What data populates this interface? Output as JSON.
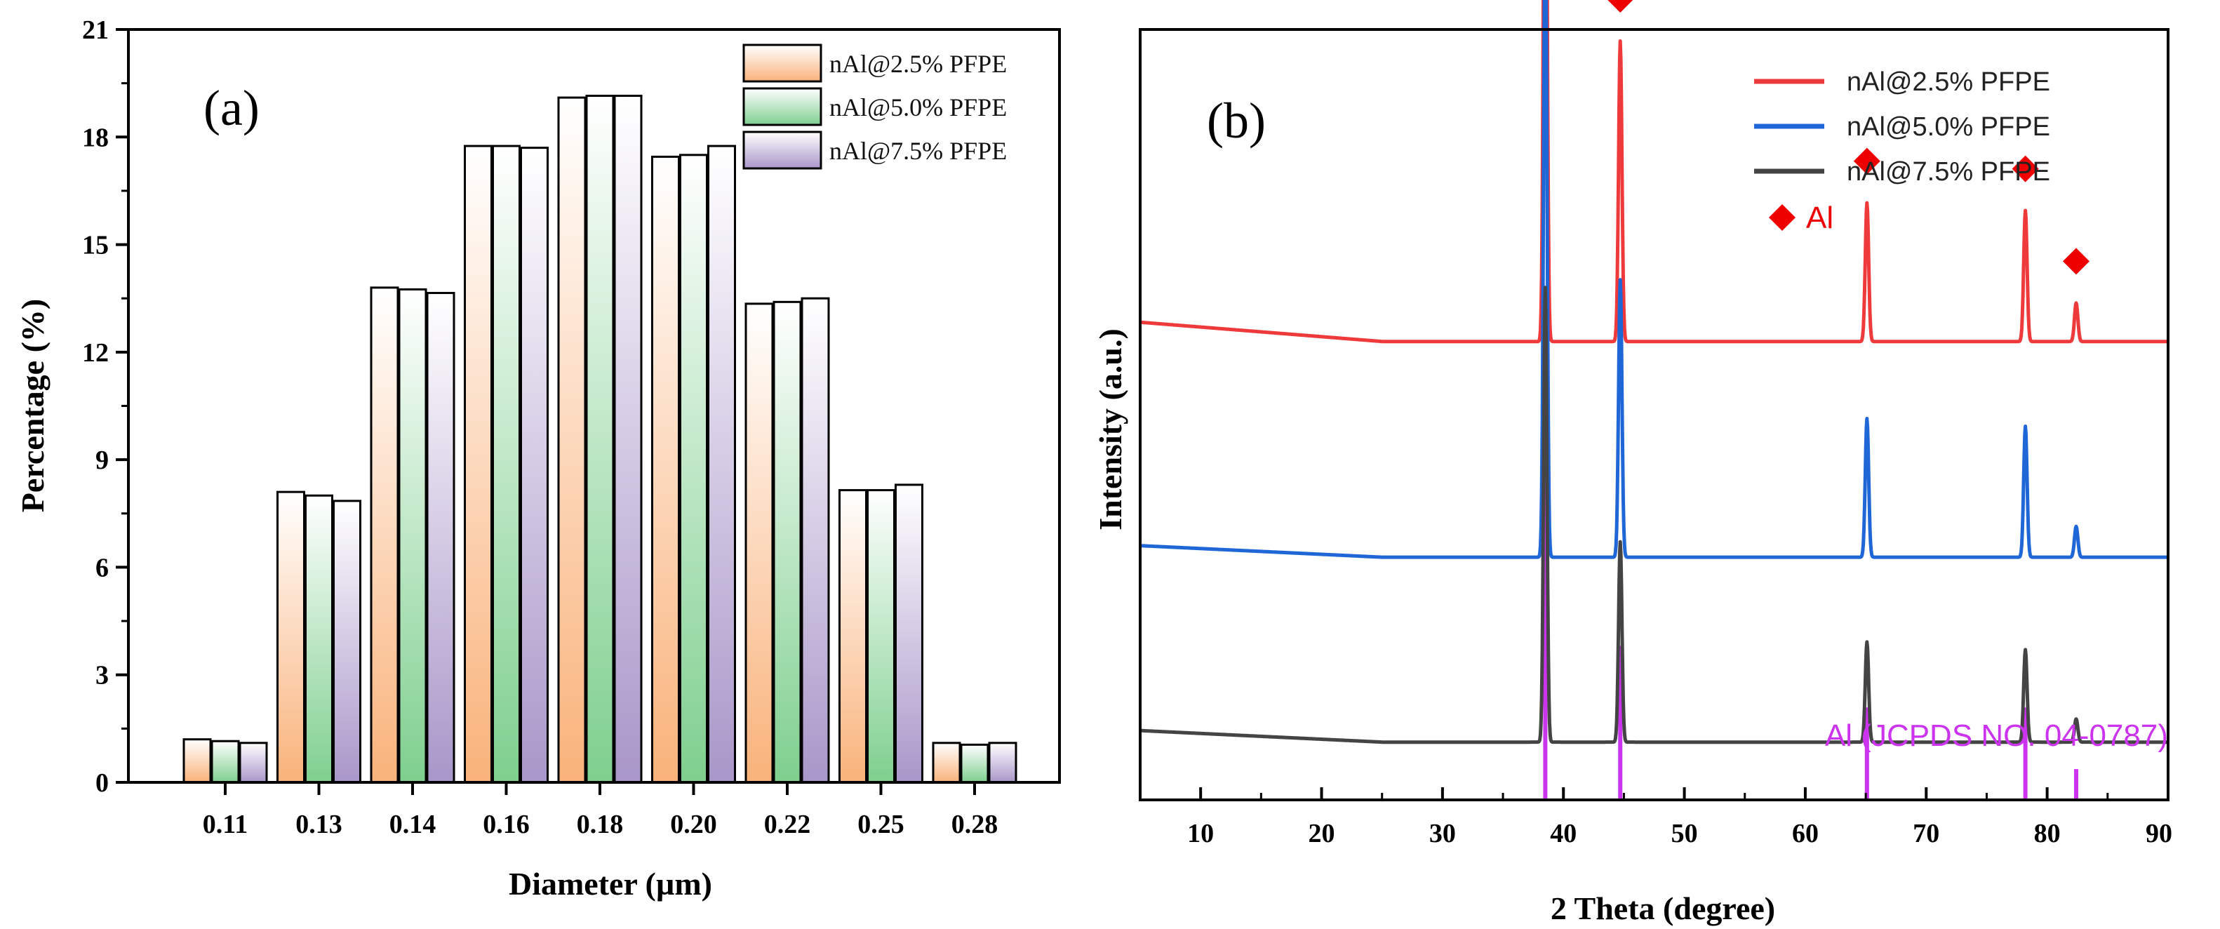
{
  "chart_data": [
    {
      "type": "bar",
      "panel_label": "(a)",
      "xlabel": "Diameter (µm)",
      "ylabel": "Percentage (%)",
      "ylim": [
        0,
        21
      ],
      "yticks": [
        "0",
        "3",
        "6",
        "9",
        "12",
        "15",
        "18",
        "21"
      ],
      "categories": [
        "0.11",
        "0.13",
        "0.14",
        "0.16",
        "0.18",
        "0.20",
        "0.22",
        "0.25",
        "0.28"
      ],
      "series": [
        {
          "name": "nAl@2.5% PFPE",
          "color": "#f9b27a",
          "values": [
            1.2,
            8.1,
            13.8,
            17.75,
            19.1,
            17.45,
            13.35,
            8.15,
            1.1
          ]
        },
        {
          "name": "nAl@5.0% PFPE",
          "color": "#7ecf8e",
          "values": [
            1.15,
            8.0,
            13.75,
            17.75,
            19.15,
            17.5,
            13.4,
            8.15,
            1.05
          ]
        },
        {
          "name": "nAl@7.5% PFPE",
          "color": "#a996c9",
          "values": [
            1.1,
            7.85,
            13.65,
            17.7,
            19.15,
            17.75,
            13.5,
            8.3,
            1.1
          ]
        }
      ],
      "legend_position": "top-right"
    },
    {
      "type": "line",
      "panel_label": "(b)",
      "xlabel": "2 Theta (degree)",
      "ylabel": "Intensity (a.u.)",
      "xlim": [
        5,
        90
      ],
      "xticks": [
        "10",
        "20",
        "30",
        "40",
        "50",
        "60",
        "70",
        "80",
        "90"
      ],
      "peaks_2theta": [
        38.5,
        44.7,
        65.1,
        78.2,
        82.4
      ],
      "series": [
        {
          "name": "nAl@2.5% PFPE",
          "color": "#ee3a3a",
          "baseline": 0.62,
          "slope": 0.025,
          "peak_heights": [
            0.89,
            0.39,
            0.18,
            0.17,
            0.05
          ]
        },
        {
          "name": "nAl@5.0% PFPE",
          "color": "#1f66d6",
          "baseline": 0.33,
          "slope": 0.015,
          "peak_heights": [
            0.86,
            0.36,
            0.18,
            0.17,
            0.04
          ]
        },
        {
          "name": "nAl@7.5% PFPE",
          "color": "#444444",
          "baseline": 0.09,
          "slope": 0.015,
          "peak_heights": [
            0.59,
            0.26,
            0.13,
            0.12,
            0.03
          ]
        }
      ],
      "reference": {
        "label": "Al (JCPDS NO. 04-0787)",
        "color": "#cc33ee",
        "sticks": [
          {
            "x": 38.5,
            "h": 0.52
          },
          {
            "x": 44.7,
            "h": 0.2
          },
          {
            "x": 65.1,
            "h": 0.12
          },
          {
            "x": 78.2,
            "h": 0.12
          },
          {
            "x": 82.4,
            "h": 0.04
          }
        ]
      },
      "marker_legend": "Al",
      "marker_color": "#ee0000",
      "legend_position": "top-right"
    }
  ]
}
